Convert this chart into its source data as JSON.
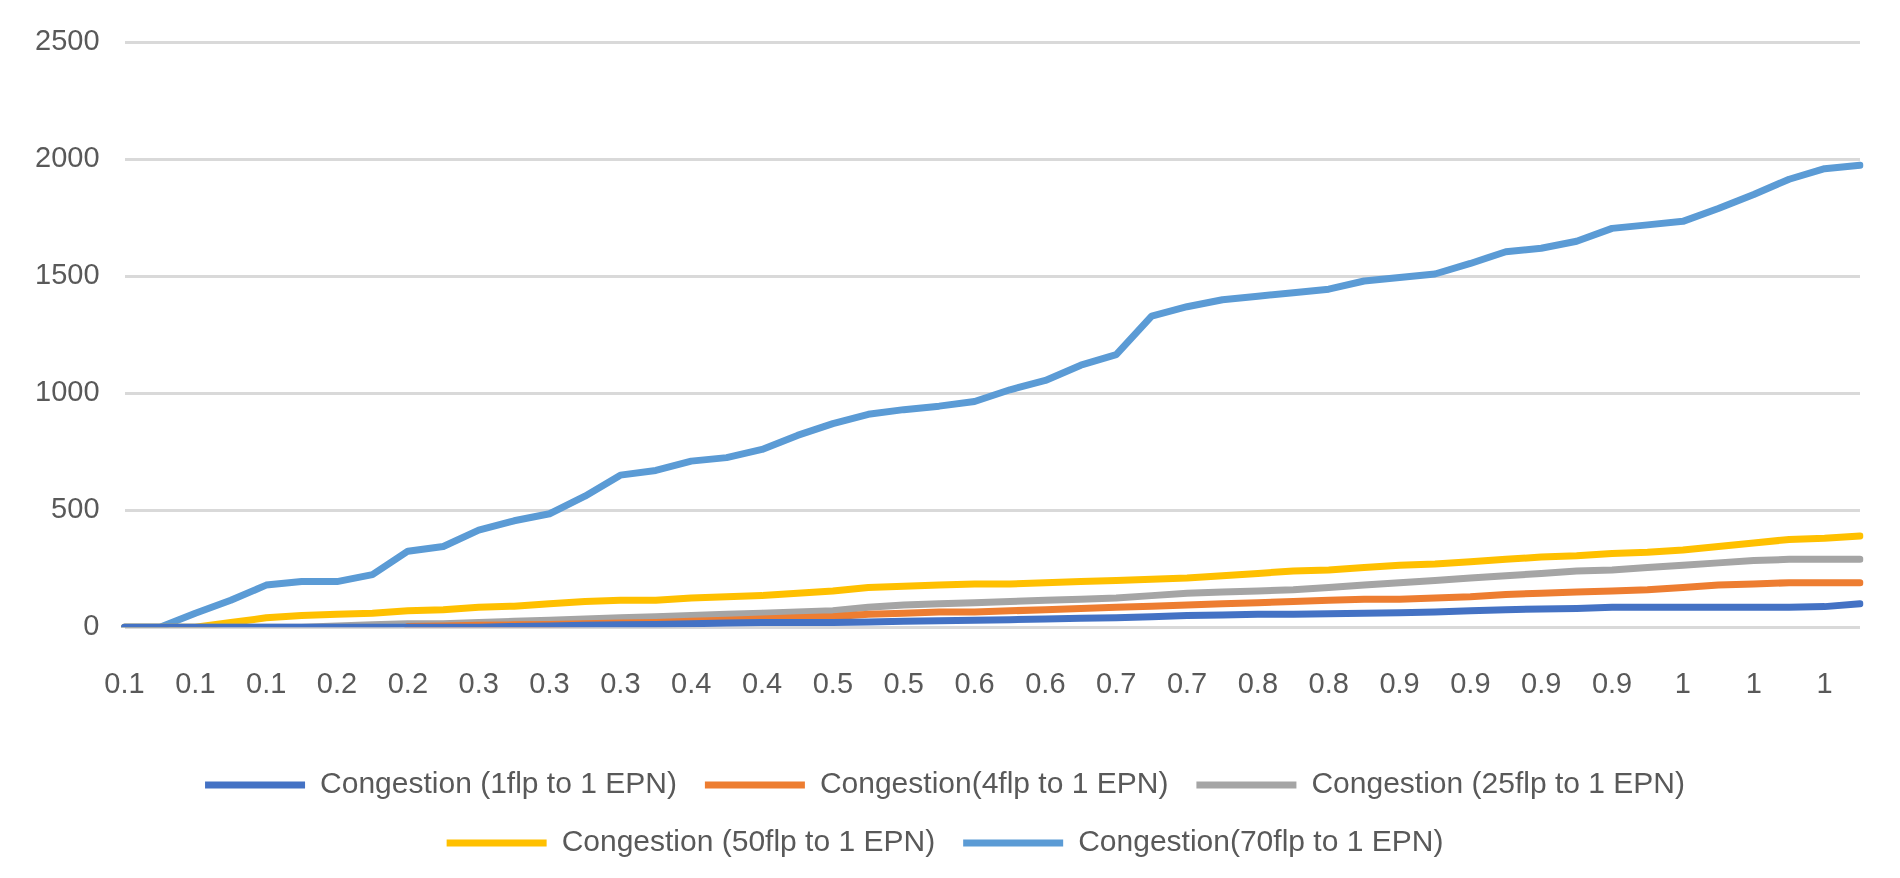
{
  "chart_data": {
    "type": "line",
    "categories": [
      "0.1",
      null,
      "0.1",
      null,
      "0.1",
      null,
      "0.2",
      null,
      "0.2",
      null,
      "0.3",
      null,
      "0.3",
      null,
      "0.3",
      null,
      "0.4",
      null,
      "0.4",
      null,
      "0.5",
      null,
      "0.5",
      null,
      "0.6",
      null,
      "0.6",
      null,
      "0.7",
      null,
      "0.7",
      null,
      "0.8",
      null,
      "0.8",
      null,
      "0.9",
      null,
      "0.9",
      null,
      "0.9",
      null,
      "0.9",
      null,
      "1",
      null,
      "1",
      null,
      "1",
      null
    ],
    "series": [
      {
        "name": "Congestion (1flp to 1 EPN)",
        "color": "#4472c4",
        "values": [
          0,
          0,
          0,
          0,
          0,
          0,
          0,
          0,
          0,
          0,
          0,
          3,
          5,
          8,
          10,
          12,
          15,
          18,
          20,
          20,
          20,
          22,
          25,
          28,
          30,
          32,
          35,
          38,
          40,
          45,
          50,
          52,
          55,
          55,
          58,
          60,
          62,
          65,
          70,
          75,
          78,
          80,
          85,
          85,
          85,
          85,
          85,
          85,
          88,
          100
        ]
      },
      {
        "name": "Congestion(4flp to 1 EPN)",
        "color": "#ed7d31",
        "values": [
          null,
          null,
          null,
          null,
          null,
          null,
          null,
          null,
          3,
          5,
          8,
          10,
          12,
          15,
          18,
          20,
          25,
          30,
          35,
          40,
          45,
          55,
          60,
          65,
          65,
          70,
          75,
          80,
          85,
          90,
          95,
          100,
          105,
          110,
          115,
          120,
          120,
          125,
          130,
          140,
          145,
          150,
          155,
          160,
          170,
          180,
          185,
          190,
          190,
          190
        ]
      },
      {
        "name": "Congestion (25flp to 1 EPN)",
        "color": "#a5a5a5",
        "values": [
          0,
          0,
          0,
          0,
          0,
          0,
          5,
          10,
          15,
          15,
          20,
          25,
          30,
          35,
          40,
          45,
          50,
          55,
          60,
          65,
          70,
          85,
          95,
          100,
          105,
          110,
          115,
          120,
          125,
          135,
          145,
          150,
          155,
          160,
          170,
          180,
          190,
          200,
          210,
          220,
          230,
          240,
          245,
          255,
          265,
          275,
          285,
          290,
          290,
          290
        ]
      },
      {
        "name": "Congestion (50flp to 1 EPN)",
        "color": "#ffc000",
        "values": [
          0,
          0,
          0,
          20,
          40,
          50,
          55,
          60,
          70,
          75,
          85,
          90,
          100,
          110,
          115,
          115,
          125,
          130,
          135,
          145,
          155,
          170,
          175,
          180,
          185,
          185,
          190,
          195,
          200,
          205,
          210,
          220,
          230,
          240,
          245,
          255,
          265,
          270,
          280,
          290,
          300,
          305,
          315,
          320,
          330,
          345,
          360,
          375,
          380,
          390
        ]
      },
      {
        "name": "Congestion(70flp to 1 EPN)",
        "color": "#5b9bd5",
        "values": [
          0,
          0,
          60,
          115,
          180,
          195,
          195,
          225,
          325,
          345,
          415,
          455,
          485,
          560,
          650,
          670,
          710,
          725,
          760,
          820,
          870,
          910,
          930,
          945,
          965,
          1015,
          1055,
          1120,
          1165,
          1330,
          1370,
          1400,
          1415,
          1430,
          1445,
          1480,
          1495,
          1510,
          1555,
          1605,
          1620,
          1650,
          1705,
          1720,
          1735,
          1790,
          1850,
          1915,
          1960,
          1975
        ]
      }
    ],
    "ylim": [
      0,
      2500
    ],
    "yticks": [
      0,
      500,
      1000,
      1500,
      2000,
      2500
    ],
    "grid": "y",
    "legend": "bottom",
    "marker": "none",
    "line_style": "solid"
  }
}
